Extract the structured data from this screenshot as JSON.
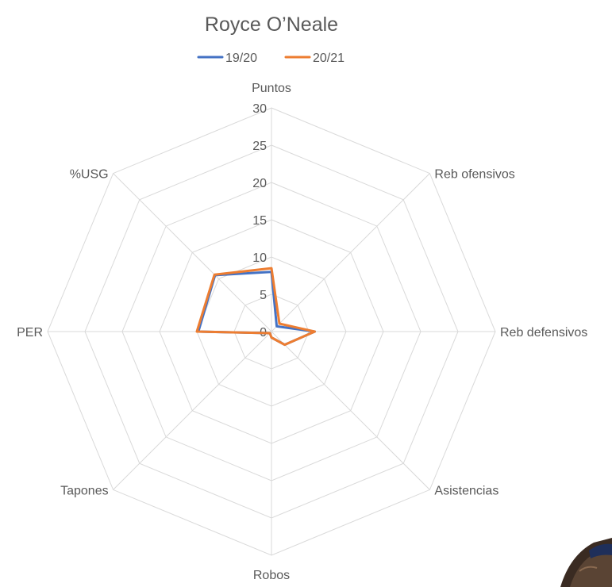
{
  "chart_data": {
    "type": "radar",
    "title": "Royce O’Neale",
    "categories": [
      "Puntos",
      "Reb ofensivos",
      "Reb defensivos",
      "Asistencias",
      "Robos",
      "Tapones",
      "PER",
      "%USG"
    ],
    "series": [
      {
        "name": "19/20",
        "values": [
          8.0,
          1.0,
          5.8,
          2.5,
          0.8,
          0.3,
          9.8,
          10.7
        ],
        "color": "#4472C4"
      },
      {
        "name": "20/21",
        "values": [
          8.5,
          1.5,
          5.8,
          2.5,
          0.8,
          0.3,
          10.0,
          10.8
        ],
        "color": "#ED7D31"
      }
    ],
    "rlim": [
      0,
      30
    ],
    "ticks": [
      0,
      5,
      10,
      15,
      20,
      25,
      30
    ],
    "grid": true,
    "legend_position": "top"
  }
}
